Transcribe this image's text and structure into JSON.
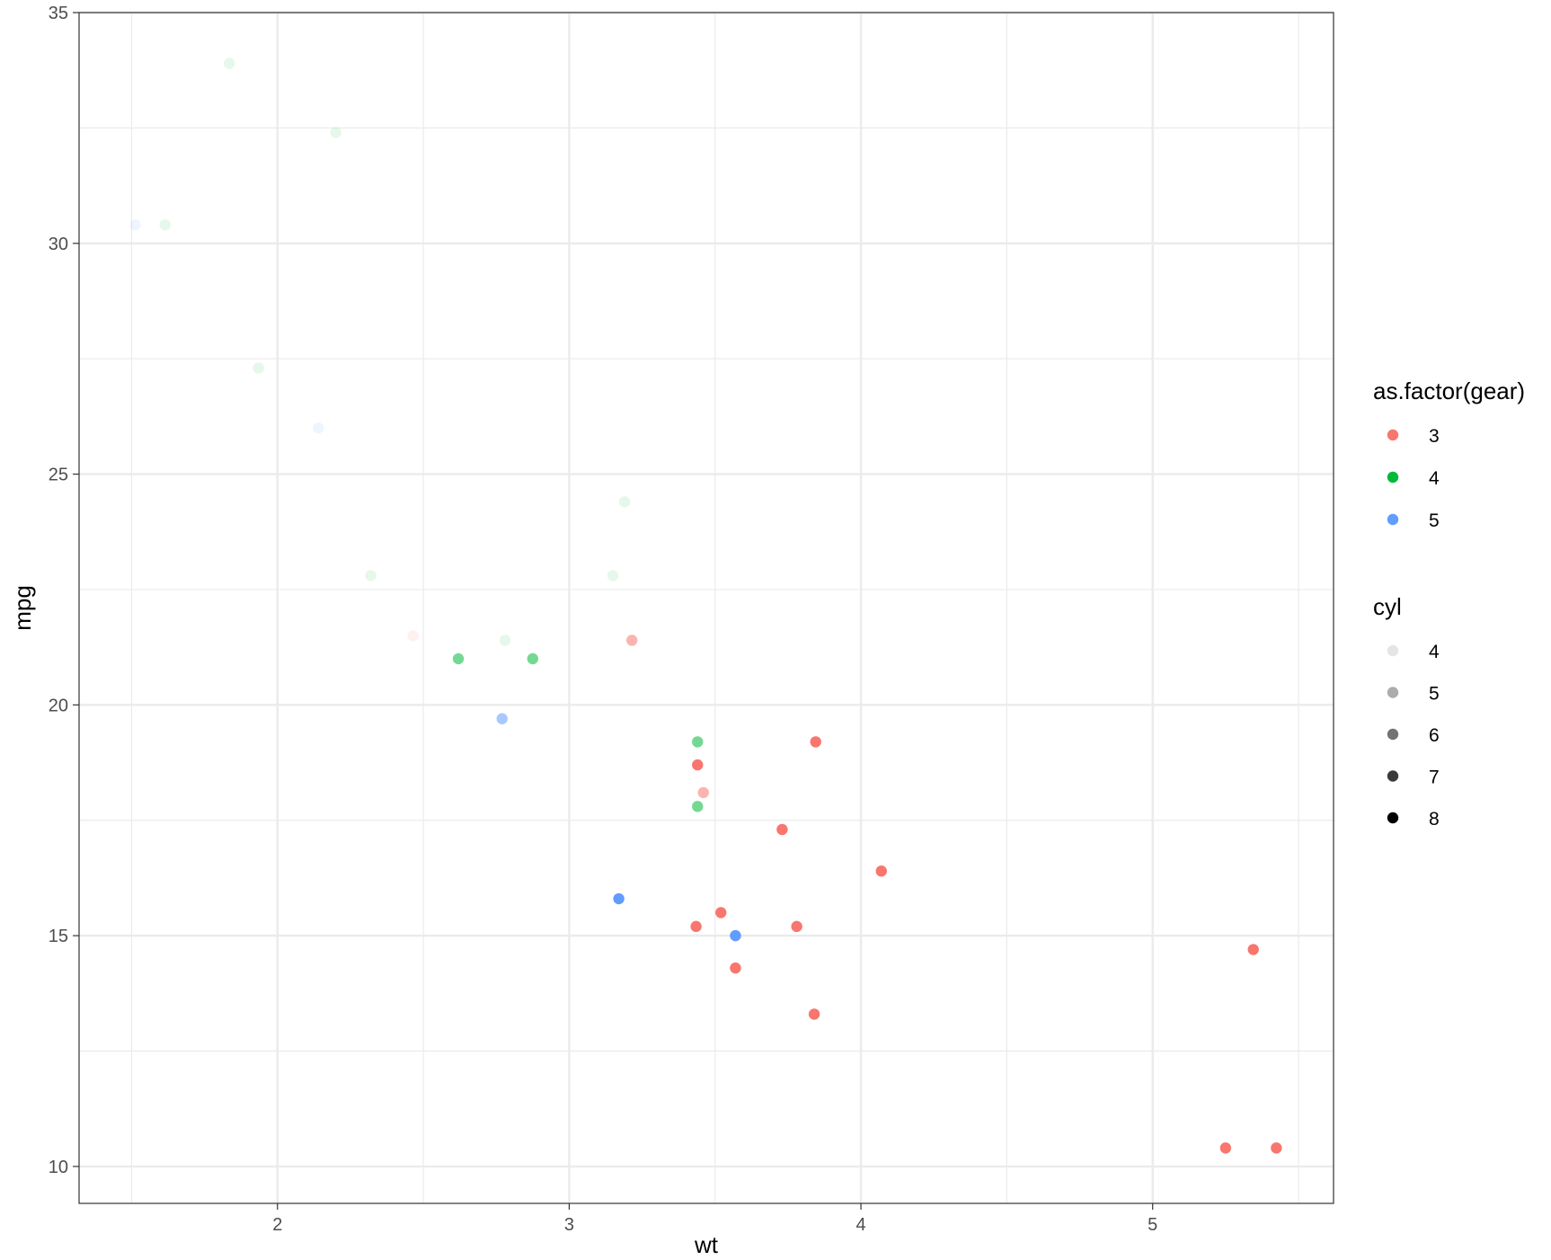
{
  "chart_data": {
    "type": "scatter",
    "title": "",
    "xlabel": "wt",
    "ylabel": "mpg",
    "xlim": [
      1.32,
      5.62
    ],
    "ylim": [
      9.2,
      35.0
    ],
    "x_ticks": [
      2,
      3,
      4,
      5
    ],
    "y_ticks": [
      10,
      15,
      20,
      25,
      30,
      35
    ],
    "grid": true,
    "legend_position": "right",
    "color_scale": {
      "title": "as.factor(gear)",
      "levels": [
        {
          "label": "3",
          "color": "#F8766D"
        },
        {
          "label": "4",
          "color": "#00BA38"
        },
        {
          "label": "5",
          "color": "#619CFF"
        }
      ]
    },
    "alpha_scale": {
      "title": "cyl",
      "levels": [
        {
          "label": "4",
          "alpha": 0.1
        },
        {
          "label": "5",
          "alpha": 0.325
        },
        {
          "label": "6",
          "alpha": 0.55
        },
        {
          "label": "7",
          "alpha": 0.775
        },
        {
          "label": "8",
          "alpha": 1.0
        }
      ]
    },
    "points": [
      {
        "wt": 2.62,
        "mpg": 21.0,
        "gear": "4",
        "cyl": 6
      },
      {
        "wt": 2.875,
        "mpg": 21.0,
        "gear": "4",
        "cyl": 6
      },
      {
        "wt": 2.32,
        "mpg": 22.8,
        "gear": "4",
        "cyl": 4
      },
      {
        "wt": 3.215,
        "mpg": 21.4,
        "gear": "3",
        "cyl": 6
      },
      {
        "wt": 3.44,
        "mpg": 18.7,
        "gear": "3",
        "cyl": 8
      },
      {
        "wt": 3.46,
        "mpg": 18.1,
        "gear": "3",
        "cyl": 6
      },
      {
        "wt": 3.57,
        "mpg": 14.3,
        "gear": "3",
        "cyl": 8
      },
      {
        "wt": 3.19,
        "mpg": 24.4,
        "gear": "4",
        "cyl": 4
      },
      {
        "wt": 3.15,
        "mpg": 22.8,
        "gear": "4",
        "cyl": 4
      },
      {
        "wt": 3.44,
        "mpg": 19.2,
        "gear": "4",
        "cyl": 6
      },
      {
        "wt": 3.44,
        "mpg": 17.8,
        "gear": "4",
        "cyl": 6
      },
      {
        "wt": 4.07,
        "mpg": 16.4,
        "gear": "3",
        "cyl": 8
      },
      {
        "wt": 3.73,
        "mpg": 17.3,
        "gear": "3",
        "cyl": 8
      },
      {
        "wt": 3.78,
        "mpg": 15.2,
        "gear": "3",
        "cyl": 8
      },
      {
        "wt": 5.25,
        "mpg": 10.4,
        "gear": "3",
        "cyl": 8
      },
      {
        "wt": 5.424,
        "mpg": 10.4,
        "gear": "3",
        "cyl": 8
      },
      {
        "wt": 5.345,
        "mpg": 14.7,
        "gear": "3",
        "cyl": 8
      },
      {
        "wt": 2.2,
        "mpg": 32.4,
        "gear": "4",
        "cyl": 4
      },
      {
        "wt": 1.615,
        "mpg": 30.4,
        "gear": "4",
        "cyl": 4
      },
      {
        "wt": 1.835,
        "mpg": 33.9,
        "gear": "4",
        "cyl": 4
      },
      {
        "wt": 2.465,
        "mpg": 21.5,
        "gear": "3",
        "cyl": 4
      },
      {
        "wt": 3.52,
        "mpg": 15.5,
        "gear": "3",
        "cyl": 8
      },
      {
        "wt": 3.435,
        "mpg": 15.2,
        "gear": "3",
        "cyl": 8
      },
      {
        "wt": 3.84,
        "mpg": 13.3,
        "gear": "3",
        "cyl": 8
      },
      {
        "wt": 3.845,
        "mpg": 19.2,
        "gear": "3",
        "cyl": 8
      },
      {
        "wt": 1.935,
        "mpg": 27.3,
        "gear": "4",
        "cyl": 4
      },
      {
        "wt": 2.14,
        "mpg": 26.0,
        "gear": "5",
        "cyl": 4
      },
      {
        "wt": 1.513,
        "mpg": 30.4,
        "gear": "5",
        "cyl": 4
      },
      {
        "wt": 3.17,
        "mpg": 15.8,
        "gear": "5",
        "cyl": 8
      },
      {
        "wt": 2.77,
        "mpg": 19.7,
        "gear": "5",
        "cyl": 6
      },
      {
        "wt": 3.57,
        "mpg": 15.0,
        "gear": "5",
        "cyl": 8
      },
      {
        "wt": 2.78,
        "mpg": 21.4,
        "gear": "4",
        "cyl": 4
      }
    ]
  }
}
